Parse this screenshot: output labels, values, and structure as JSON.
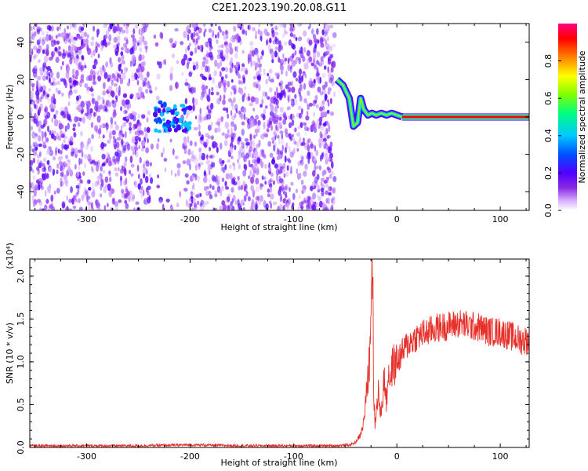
{
  "figure": {
    "title": "C2E1.2023.190.20.08.G11"
  },
  "chart_data": [
    {
      "type": "heatmap",
      "xlabel": "Height of straight line (km)",
      "ylabel": "Frequency (Hz)",
      "xlim": [
        -355,
        128
      ],
      "ylim": [
        -50,
        50
      ],
      "xticks": [
        -300,
        -200,
        -100,
        0,
        100
      ],
      "yticks": [
        -40,
        -20,
        0,
        20,
        40
      ],
      "colorbar": {
        "label": "Normalized spectral amplitude",
        "range": [
          0,
          1
        ],
        "ticks": [
          "0.0",
          "0.2",
          "0.4",
          "0.6",
          "0.8"
        ],
        "tick_values": [
          0,
          0.2,
          0.4,
          0.6,
          0.8
        ],
        "colors": [
          "#ffffff",
          "#d9b3ff",
          "#8a2be2",
          "#5000ff",
          "#0050ff",
          "#00c8ff",
          "#00ff80",
          "#80ff00",
          "#ffff00",
          "#ff8000",
          "#ff0000",
          "#ff0080"
        ]
      },
      "regions": [
        {
          "name": "noise",
          "x": [
            -355,
            -60
          ],
          "y": [
            -50,
            50
          ],
          "amplitude": 0.15
        },
        {
          "name": "blob",
          "x": [
            -235,
            -200
          ],
          "y": [
            -8,
            8
          ],
          "amplitude": 0.35
        },
        {
          "name": "signal-line",
          "x": [
            5,
            128
          ],
          "y": [
            0,
            0
          ],
          "amplitude": 0.95
        }
      ],
      "track": {
        "x": [
          -58,
          -52,
          -46,
          -42,
          -38,
          -35,
          -32,
          -28,
          -24,
          -20,
          -15,
          -10,
          -5,
          0,
          5
        ],
        "y": [
          20,
          17,
          10,
          -5,
          -3,
          10,
          4,
          1,
          2,
          1,
          2,
          1,
          2,
          1,
          0
        ]
      }
    },
    {
      "type": "line",
      "xlabel": "Height of straight line (km)",
      "ylabel": "SNR (10 * v/v)",
      "scale_label": "(x10⁴)",
      "xlim": [
        -355,
        128
      ],
      "ylim": [
        0,
        2.2
      ],
      "xticks": [
        -300,
        -200,
        -100,
        0,
        100
      ],
      "yticks": [
        "0.0",
        "0.5",
        "1.0",
        "1.5",
        "2.0"
      ],
      "ytick_values": [
        0,
        0.5,
        1.0,
        1.5,
        2.0
      ],
      "color": "#e8302a",
      "series": [
        {
          "x": [
            -355,
            -300,
            -250,
            -200,
            -150,
            -100,
            -60,
            -45,
            -40,
            -35,
            -32,
            -30,
            -28,
            -26,
            -25,
            -24,
            -23,
            -22,
            -21,
            -20,
            -18,
            -16,
            -14,
            -12,
            -10,
            -8,
            -6,
            -4,
            -2,
            0,
            5,
            10,
            20,
            30,
            40,
            50,
            60,
            70,
            80,
            90,
            100,
            110,
            120,
            128
          ],
          "y": [
            0.02,
            0.02,
            0.02,
            0.03,
            0.02,
            0.02,
            0.02,
            0.03,
            0.06,
            0.15,
            0.3,
            0.55,
            0.8,
            1.1,
            1.6,
            2.2,
            1.0,
            0.5,
            0.25,
            0.4,
            0.7,
            0.35,
            0.55,
            0.85,
            0.5,
            0.95,
            0.75,
            1.0,
            0.95,
            1.0,
            1.1,
            1.2,
            1.3,
            1.35,
            1.4,
            1.42,
            1.45,
            1.42,
            1.4,
            1.35,
            1.35,
            1.3,
            1.25,
            1.25
          ]
        }
      ]
    }
  ]
}
